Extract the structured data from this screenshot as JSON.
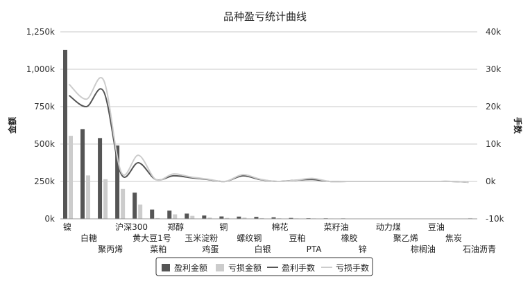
{
  "chart_data": {
    "type": "bar",
    "title": "品种盈亏统计曲线",
    "ylabel_left": "金额",
    "ylabel_right": "手数",
    "categories": [
      "镍",
      "白糖",
      "聚丙烯",
      "沪深300",
      "黄大豆1号",
      "菜粕",
      "郑醇",
      "玉米淀粉",
      "鸡蛋",
      "铜",
      "螺纹钢",
      "白银",
      "棉花",
      "豆粕",
      "PTA",
      "菜籽油",
      "橡胶",
      "锌",
      "动力煤",
      "聚乙烯",
      "棕榈油",
      "豆油",
      "焦炭",
      "石油沥青"
    ],
    "left_axis": {
      "min": 0,
      "max": 1250000,
      "ticks": [
        0,
        250000,
        500000,
        750000,
        1000000,
        1250000
      ],
      "tick_labels": [
        "0k",
        "250k",
        "500k",
        "750k",
        "1,000k",
        "1,250k"
      ]
    },
    "right_axis": {
      "min": -10000,
      "max": 40000,
      "ticks": [
        -10000,
        0,
        10000,
        20000,
        30000,
        40000
      ],
      "tick_labels": [
        "-10k",
        "0k",
        "10k",
        "20k",
        "30k",
        "40k"
      ]
    },
    "grid": true,
    "legend_position": "bottom-center",
    "series": [
      {
        "name": "盈利金额",
        "kind": "bar",
        "axis": "left",
        "color": "#555555",
        "values": [
          1130000,
          600000,
          540000,
          490000,
          175000,
          62000,
          55000,
          35000,
          22000,
          16000,
          15000,
          13000,
          10000,
          6000,
          4000,
          3500,
          3000,
          2000,
          1500,
          1200,
          900,
          700,
          500,
          400
        ]
      },
      {
        "name": "亏损金额",
        "kind": "bar",
        "axis": "left",
        "color": "#cccccc",
        "values": [
          555000,
          290000,
          265000,
          200000,
          95000,
          5000,
          30000,
          20000,
          8000,
          6000,
          8000,
          5000,
          4000,
          3000,
          3000,
          2500,
          2000,
          1500,
          1000,
          900,
          700,
          500,
          400,
          5000
        ]
      },
      {
        "name": "盈利手数",
        "kind": "line",
        "axis": "right",
        "color": "#555555",
        "values": [
          23000,
          20000,
          24000,
          2000,
          5000,
          500,
          1500,
          1000,
          500,
          0,
          1500,
          500,
          0,
          300,
          500,
          0,
          0,
          0,
          0,
          0,
          0,
          0,
          0,
          -200
        ]
      },
      {
        "name": "亏损手数",
        "kind": "line",
        "axis": "right",
        "color": "#cccccc",
        "values": [
          26000,
          22000,
          27000,
          2500,
          7000,
          500,
          2000,
          1200,
          600,
          0,
          1800,
          600,
          0,
          300,
          800,
          0,
          0,
          0,
          0,
          0,
          0,
          0,
          0,
          -200
        ]
      }
    ]
  }
}
